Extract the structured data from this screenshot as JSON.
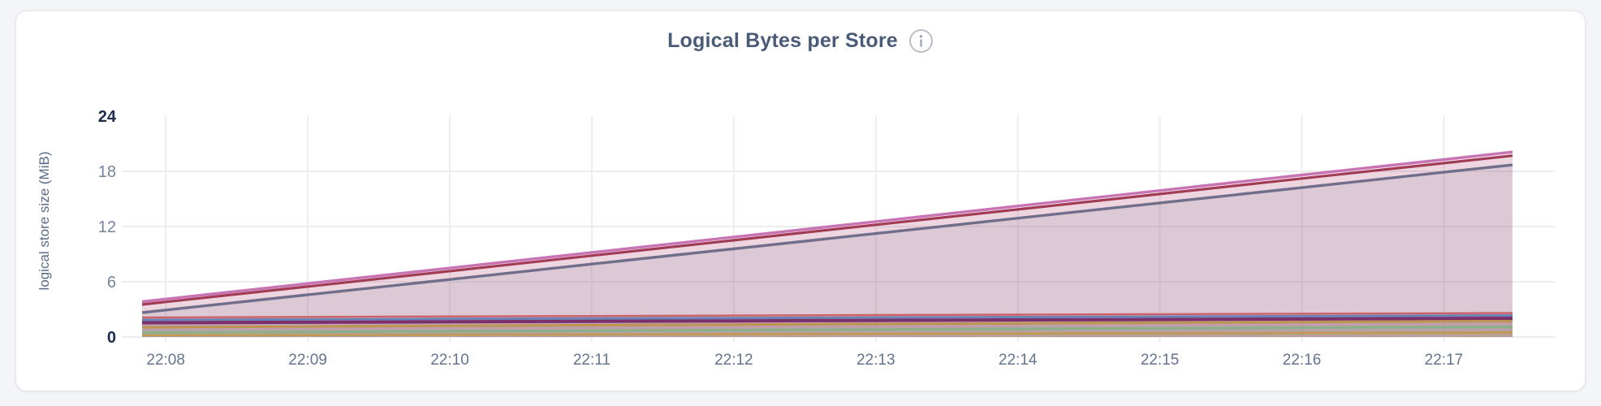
{
  "page": {
    "background": "#f4f5f8",
    "card_background": "#ffffff"
  },
  "header": {
    "title": "Logical Bytes per Store",
    "info_icon": "info-circle-icon"
  },
  "chart_data": {
    "type": "area",
    "title": "Logical Bytes per Store",
    "xlabel": "",
    "ylabel": "logical store size (MiB)",
    "ylim": [
      0,
      24
    ],
    "grid": true,
    "legend": "none",
    "yticks": [
      {
        "label": "0",
        "value": 0,
        "emphasis": true,
        "gridline": true
      },
      {
        "label": "6",
        "value": 6,
        "emphasis": false,
        "gridline": true
      },
      {
        "label": "12",
        "value": 12,
        "emphasis": false,
        "gridline": true
      },
      {
        "label": "18",
        "value": 18,
        "emphasis": false,
        "gridline": true
      },
      {
        "label": "24",
        "value": 24,
        "emphasis": true,
        "gridline": false
      }
    ],
    "x_tick_labels": [
      "22:08",
      "22:09",
      "22:10",
      "22:11",
      "22:12",
      "22:13",
      "22:14",
      "22:15",
      "22:16",
      "22:17"
    ],
    "x_tick_secs": [
      10,
      70,
      130,
      190,
      250,
      310,
      370,
      430,
      490,
      550
    ],
    "sample_times": [
      "22:07:50",
      "22:08:00",
      "22:09:00",
      "22:10:00",
      "22:11:00",
      "22:12:00",
      "22:13:00",
      "22:14:00",
      "22:15:00",
      "22:16:00",
      "22:17:00",
      "22:17:29"
    ],
    "sample_secs": [
      0,
      10,
      70,
      130,
      190,
      250,
      310,
      370,
      430,
      490,
      550,
      579
    ],
    "series": [
      {
        "id": "store-1",
        "color": "#c873b3",
        "values": [
          3.84,
          4.12,
          5.81,
          7.49,
          9.18,
          10.86,
          12.54,
          14.23,
          15.91,
          17.6,
          19.28,
          20.1
        ]
      },
      {
        "id": "store-2",
        "color": "#a23c55",
        "values": [
          3.53,
          3.81,
          5.48,
          7.16,
          8.84,
          10.51,
          12.19,
          13.86,
          15.54,
          17.22,
          18.89,
          19.7
        ]
      },
      {
        "id": "store-3",
        "color": "#716e8c",
        "values": [
          2.65,
          2.93,
          4.59,
          6.25,
          7.92,
          9.58,
          11.24,
          12.91,
          14.57,
          16.23,
          17.9,
          18.7
        ]
      },
      {
        "id": "store-4",
        "color": "#cc6168",
        "values": [
          2.12,
          2.13,
          2.18,
          2.23,
          2.28,
          2.33,
          2.38,
          2.43,
          2.48,
          2.53,
          2.58,
          2.6
        ]
      },
      {
        "id": "store-5",
        "color": "#6a82b6",
        "values": [
          1.85,
          1.86,
          1.91,
          1.96,
          2.01,
          2.06,
          2.11,
          2.16,
          2.21,
          2.26,
          2.31,
          2.34
        ]
      },
      {
        "id": "store-6",
        "color": "#7b2f6b",
        "values": [
          1.54,
          1.55,
          1.6,
          1.65,
          1.7,
          1.75,
          1.8,
          1.85,
          1.9,
          1.95,
          2.0,
          2.03
        ]
      },
      {
        "id": "store-7",
        "color": "#bd9450",
        "values": [
          1.06,
          1.07,
          1.14,
          1.21,
          1.28,
          1.34,
          1.41,
          1.48,
          1.55,
          1.62,
          1.69,
          1.72
        ]
      },
      {
        "id": "store-8",
        "color": "#89b189",
        "values": [
          0.49,
          0.5,
          0.56,
          0.63,
          0.69,
          0.75,
          0.82,
          0.88,
          0.94,
          1.01,
          1.07,
          1.1
        ]
      },
      {
        "id": "store-9",
        "color": "#c19a52",
        "values": [
          0.18,
          0.19,
          0.22,
          0.25,
          0.28,
          0.31,
          0.35,
          0.38,
          0.41,
          0.44,
          0.47,
          0.49
        ]
      }
    ],
    "grid_color": "#ededef",
    "fill_opacity": 0.13
  }
}
